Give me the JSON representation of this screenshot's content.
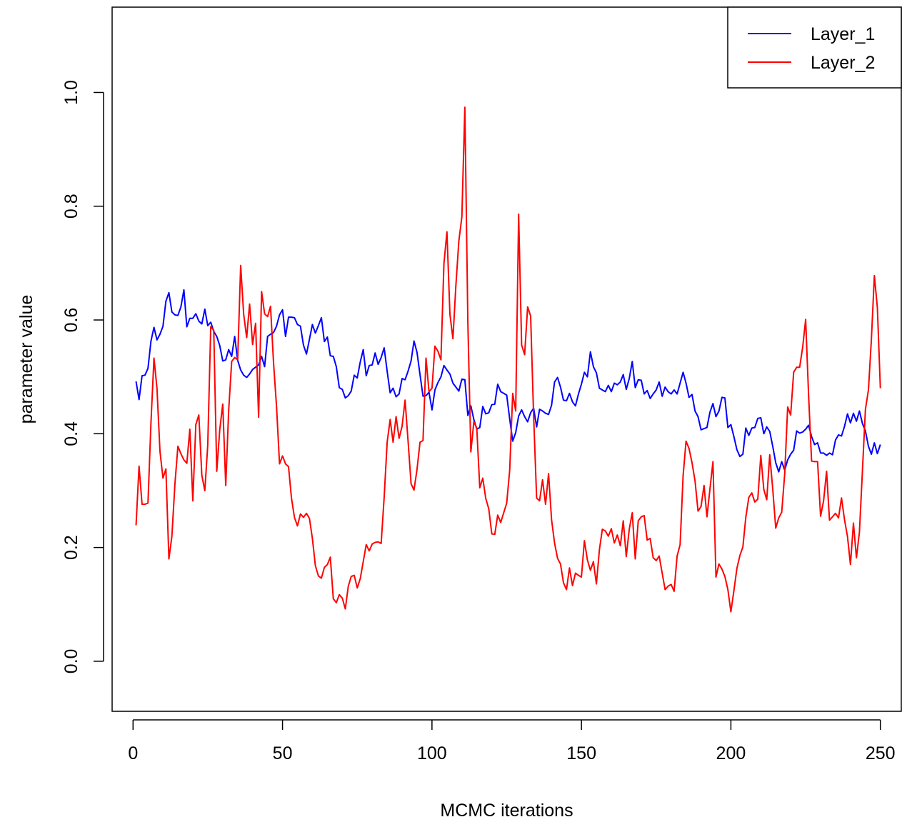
{
  "chart_data": {
    "type": "line",
    "title": "",
    "xlabel": "MCMC iterations",
    "ylabel": "parameter value",
    "xlim": [
      -7,
      257
    ],
    "ylim": [
      -0.088,
      1.15
    ],
    "xticks": [
      0,
      50,
      100,
      150,
      200,
      250
    ],
    "yticks": [
      0.0,
      0.2,
      0.4,
      0.6,
      0.8,
      1.0
    ],
    "xtick_labels": [
      "0",
      "50",
      "100",
      "150",
      "200",
      "250"
    ],
    "ytick_labels": [
      "0.0",
      "0.2",
      "0.4",
      "0.6",
      "0.8",
      "1.0"
    ],
    "grid": false,
    "legend_position": "top-right",
    "series": [
      {
        "name": "Layer_1",
        "color": "#0000ff",
        "x": [
          1,
          2,
          3,
          4,
          5,
          6,
          7,
          8,
          9,
          10,
          11,
          12,
          13,
          14,
          15,
          16,
          17,
          18,
          19,
          20,
          21,
          22,
          23,
          24,
          25,
          26,
          27,
          28,
          29,
          30,
          31,
          32,
          33,
          34,
          35,
          36,
          37,
          38,
          39,
          40,
          41,
          42,
          43,
          44,
          45,
          46,
          47,
          48,
          49,
          50,
          51,
          52,
          53,
          54,
          55,
          56,
          57,
          58,
          59,
          60,
          61,
          62,
          63,
          64,
          65,
          66,
          67,
          68,
          69,
          70,
          71,
          72,
          73,
          74,
          75,
          76,
          77,
          78,
          79,
          80,
          81,
          82,
          83,
          84,
          85,
          86,
          87,
          88,
          89,
          90,
          91,
          92,
          93,
          94,
          95,
          96,
          97,
          98,
          99,
          100,
          101,
          102,
          103,
          104,
          105,
          106,
          107,
          108,
          109,
          110,
          111,
          112,
          113,
          114,
          115,
          116,
          117,
          118,
          119,
          120,
          121,
          122,
          123,
          124,
          125,
          126,
          127,
          128,
          129,
          130,
          131,
          132,
          133,
          134,
          135,
          136,
          137,
          138,
          139,
          140,
          141,
          142,
          143,
          144,
          145,
          146,
          147,
          148,
          149,
          150,
          151,
          152,
          153,
          154,
          155,
          156,
          157,
          158,
          159,
          160,
          161,
          162,
          163,
          164,
          165,
          166,
          167,
          168,
          169,
          170,
          171,
          172,
          173,
          174,
          175,
          176,
          177,
          178,
          179,
          180,
          181,
          182,
          183,
          184,
          185,
          186,
          187,
          188,
          189,
          190,
          191,
          192,
          193,
          194,
          195,
          196,
          197,
          198,
          199,
          200,
          201,
          202,
          203,
          204,
          205,
          206,
          207,
          208,
          209,
          210,
          211,
          212,
          213,
          214,
          215,
          216,
          217,
          218,
          219,
          220,
          221,
          222,
          223,
          224,
          225,
          226,
          227,
          228,
          229,
          230,
          231,
          232,
          233,
          234,
          235,
          236,
          237,
          238,
          239,
          240,
          241,
          242,
          243,
          244,
          245,
          246,
          247,
          248,
          249,
          250
        ],
        "y": [
          0.492,
          0.46,
          0.502,
          0.503,
          0.515,
          0.563,
          0.587,
          0.565,
          0.575,
          0.589,
          0.633,
          0.648,
          0.614,
          0.609,
          0.608,
          0.623,
          0.653,
          0.588,
          0.603,
          0.603,
          0.611,
          0.598,
          0.593,
          0.619,
          0.59,
          0.596,
          0.58,
          0.571,
          0.555,
          0.528,
          0.53,
          0.548,
          0.536,
          0.571,
          0.529,
          0.512,
          0.503,
          0.499,
          0.505,
          0.513,
          0.517,
          0.521,
          0.536,
          0.518,
          0.571,
          0.575,
          0.578,
          0.589,
          0.609,
          0.618,
          0.571,
          0.605,
          0.605,
          0.604,
          0.592,
          0.589,
          0.556,
          0.54,
          0.566,
          0.592,
          0.577,
          0.59,
          0.604,
          0.562,
          0.57,
          0.537,
          0.536,
          0.518,
          0.481,
          0.478,
          0.463,
          0.467,
          0.475,
          0.503,
          0.498,
          0.526,
          0.548,
          0.502,
          0.52,
          0.521,
          0.542,
          0.522,
          0.534,
          0.551,
          0.51,
          0.472,
          0.48,
          0.465,
          0.47,
          0.497,
          0.495,
          0.51,
          0.528,
          0.563,
          0.543,
          0.504,
          0.466,
          0.467,
          0.473,
          0.442,
          0.477,
          0.49,
          0.5,
          0.52,
          0.512,
          0.505,
          0.489,
          0.482,
          0.475,
          0.496,
          0.495,
          0.432,
          0.449,
          0.425,
          0.408,
          0.411,
          0.448,
          0.435,
          0.437,
          0.451,
          0.452,
          0.487,
          0.474,
          0.471,
          0.468,
          0.426,
          0.387,
          0.402,
          0.431,
          0.442,
          0.43,
          0.421,
          0.437,
          0.445,
          0.412,
          0.443,
          0.44,
          0.436,
          0.434,
          0.45,
          0.491,
          0.499,
          0.482,
          0.459,
          0.458,
          0.471,
          0.456,
          0.449,
          0.47,
          0.487,
          0.508,
          0.5,
          0.544,
          0.518,
          0.507,
          0.48,
          0.477,
          0.474,
          0.485,
          0.474,
          0.489,
          0.486,
          0.491,
          0.504,
          0.478,
          0.497,
          0.527,
          0.481,
          0.495,
          0.494,
          0.47,
          0.476,
          0.462,
          0.47,
          0.477,
          0.491,
          0.466,
          0.482,
          0.474,
          0.47,
          0.477,
          0.47,
          0.489,
          0.508,
          0.489,
          0.464,
          0.469,
          0.44,
          0.43,
          0.407,
          0.409,
          0.411,
          0.438,
          0.453,
          0.43,
          0.44,
          0.464,
          0.463,
          0.411,
          0.416,
          0.395,
          0.372,
          0.36,
          0.364,
          0.41,
          0.397,
          0.41,
          0.411,
          0.427,
          0.428,
          0.4,
          0.412,
          0.404,
          0.378,
          0.349,
          0.333,
          0.351,
          0.336,
          0.354,
          0.364,
          0.371,
          0.405,
          0.401,
          0.403,
          0.408,
          0.415,
          0.395,
          0.381,
          0.384,
          0.366,
          0.366,
          0.362,
          0.366,
          0.363,
          0.389,
          0.398,
          0.396,
          0.413,
          0.435,
          0.419,
          0.436,
          0.422,
          0.44,
          0.418,
          0.405,
          0.378,
          0.364,
          0.384,
          0.365,
          0.381
        ]
      },
      {
        "name": "Layer_2",
        "color": "#ff0000",
        "x": [
          1,
          2,
          3,
          4,
          5,
          6,
          7,
          8,
          9,
          10,
          11,
          12,
          13,
          14,
          15,
          16,
          17,
          18,
          19,
          20,
          21,
          22,
          23,
          24,
          25,
          26,
          27,
          28,
          29,
          30,
          31,
          32,
          33,
          34,
          35,
          36,
          37,
          38,
          39,
          40,
          41,
          42,
          43,
          44,
          45,
          46,
          47,
          48,
          49,
          50,
          51,
          52,
          53,
          54,
          55,
          56,
          57,
          58,
          59,
          60,
          61,
          62,
          63,
          64,
          65,
          66,
          67,
          68,
          69,
          70,
          71,
          72,
          73,
          74,
          75,
          76,
          77,
          78,
          79,
          80,
          81,
          82,
          83,
          84,
          85,
          86,
          87,
          88,
          89,
          90,
          91,
          92,
          93,
          94,
          95,
          96,
          97,
          98,
          99,
          100,
          101,
          102,
          103,
          104,
          105,
          106,
          107,
          108,
          109,
          110,
          111,
          112,
          113,
          114,
          115,
          116,
          117,
          118,
          119,
          120,
          121,
          122,
          123,
          124,
          125,
          126,
          127,
          128,
          129,
          130,
          131,
          132,
          133,
          134,
          135,
          136,
          137,
          138,
          139,
          140,
          141,
          142,
          143,
          144,
          145,
          146,
          147,
          148,
          149,
          150,
          151,
          152,
          153,
          154,
          155,
          156,
          157,
          158,
          159,
          160,
          161,
          162,
          163,
          164,
          165,
          166,
          167,
          168,
          169,
          170,
          171,
          172,
          173,
          174,
          175,
          176,
          177,
          178,
          179,
          180,
          181,
          182,
          183,
          184,
          185,
          186,
          187,
          188,
          189,
          190,
          191,
          192,
          193,
          194,
          195,
          196,
          197,
          198,
          199,
          200,
          201,
          202,
          203,
          204,
          205,
          206,
          207,
          208,
          209,
          210,
          211,
          212,
          213,
          214,
          215,
          216,
          217,
          218,
          219,
          220,
          221,
          222,
          223,
          224,
          225,
          226,
          227,
          228,
          229,
          230,
          231,
          232,
          233,
          234,
          235,
          236,
          237,
          238,
          239,
          240,
          241,
          242,
          243,
          244,
          245,
          246,
          247,
          248,
          249,
          250
        ],
        "y": [
          0.239,
          0.343,
          0.276,
          0.276,
          0.278,
          0.42,
          0.533,
          0.48,
          0.369,
          0.322,
          0.338,
          0.18,
          0.22,
          0.311,
          0.378,
          0.365,
          0.354,
          0.348,
          0.408,
          0.282,
          0.416,
          0.433,
          0.327,
          0.3,
          0.38,
          0.588,
          0.582,
          0.334,
          0.407,
          0.452,
          0.309,
          0.441,
          0.527,
          0.534,
          0.53,
          0.696,
          0.61,
          0.569,
          0.628,
          0.557,
          0.594,
          0.429,
          0.65,
          0.611,
          0.606,
          0.624,
          0.525,
          0.448,
          0.347,
          0.361,
          0.347,
          0.342,
          0.287,
          0.253,
          0.238,
          0.259,
          0.253,
          0.26,
          0.251,
          0.216,
          0.168,
          0.15,
          0.146,
          0.165,
          0.17,
          0.183,
          0.11,
          0.103,
          0.117,
          0.111,
          0.092,
          0.132,
          0.149,
          0.151,
          0.129,
          0.145,
          0.175,
          0.205,
          0.194,
          0.206,
          0.209,
          0.21,
          0.207,
          0.288,
          0.385,
          0.425,
          0.385,
          0.43,
          0.392,
          0.413,
          0.459,
          0.387,
          0.312,
          0.301,
          0.337,
          0.385,
          0.388,
          0.533,
          0.474,
          0.48,
          0.554,
          0.545,
          0.53,
          0.699,
          0.755,
          0.61,
          0.567,
          0.66,
          0.739,
          0.781,
          0.974,
          0.596,
          0.368,
          0.421,
          0.41,
          0.305,
          0.322,
          0.286,
          0.268,
          0.224,
          0.223,
          0.257,
          0.244,
          0.261,
          0.278,
          0.336,
          0.471,
          0.44,
          0.786,
          0.556,
          0.539,
          0.623,
          0.607,
          0.431,
          0.287,
          0.282,
          0.319,
          0.276,
          0.33,
          0.249,
          0.208,
          0.181,
          0.171,
          0.138,
          0.126,
          0.164,
          0.133,
          0.155,
          0.151,
          0.148,
          0.212,
          0.178,
          0.16,
          0.175,
          0.136,
          0.196,
          0.232,
          0.229,
          0.22,
          0.233,
          0.208,
          0.222,
          0.203,
          0.247,
          0.184,
          0.232,
          0.261,
          0.18,
          0.247,
          0.254,
          0.256,
          0.213,
          0.216,
          0.182,
          0.177,
          0.185,
          0.155,
          0.126,
          0.132,
          0.135,
          0.123,
          0.185,
          0.205,
          0.326,
          0.387,
          0.374,
          0.349,
          0.317,
          0.264,
          0.272,
          0.309,
          0.254,
          0.303,
          0.351,
          0.148,
          0.171,
          0.162,
          0.149,
          0.126,
          0.087,
          0.124,
          0.163,
          0.186,
          0.201,
          0.253,
          0.288,
          0.296,
          0.28,
          0.285,
          0.362,
          0.302,
          0.284,
          0.363,
          0.303,
          0.234,
          0.252,
          0.262,
          0.33,
          0.447,
          0.433,
          0.508,
          0.517,
          0.517,
          0.552,
          0.601,
          0.468,
          0.352,
          0.351,
          0.351,
          0.255,
          0.282,
          0.334,
          0.248,
          0.254,
          0.26,
          0.252,
          0.287,
          0.249,
          0.219,
          0.17,
          0.243,
          0.182,
          0.227,
          0.335,
          0.443,
          0.477,
          0.565,
          0.678,
          0.622,
          0.48
        ]
      }
    ]
  }
}
